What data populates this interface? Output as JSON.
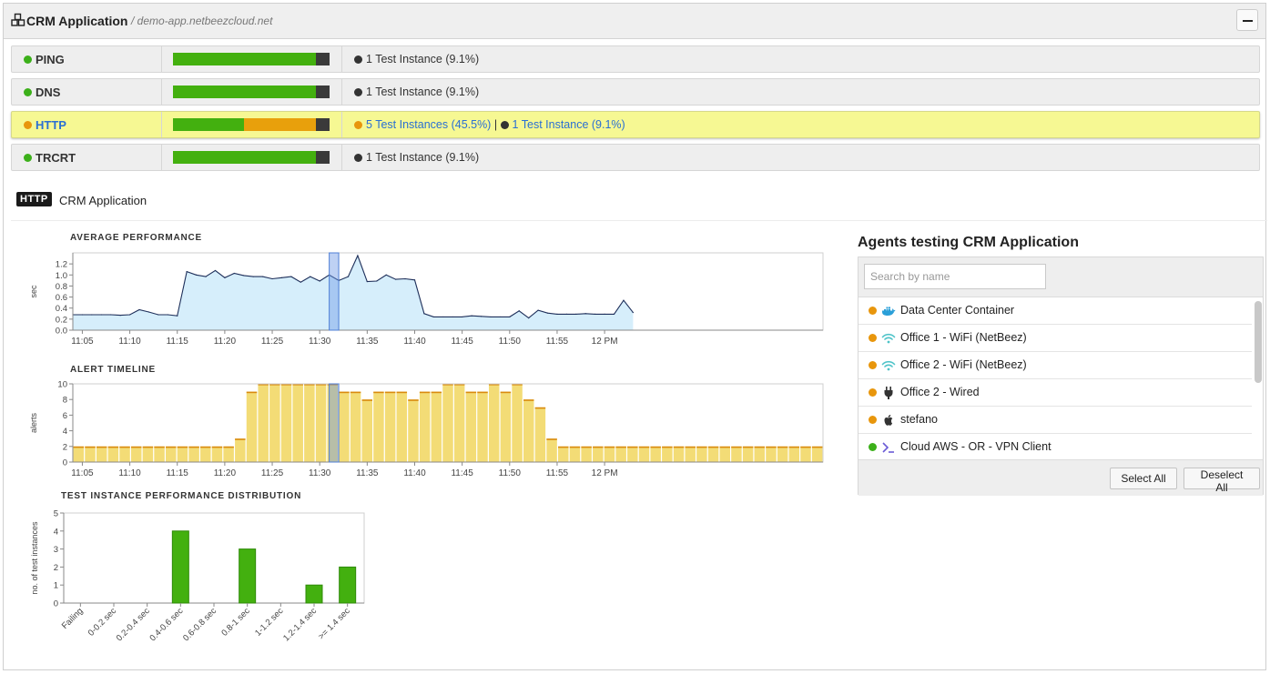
{
  "header": {
    "title": "CRM Application",
    "subtitle": "/ demo-app.netbeezcloud.net",
    "collapse_icon": "minus-icon"
  },
  "tests": [
    {
      "name": "PING",
      "status_color": "#3cb01a",
      "bar": [
        0.91,
        0,
        0.09
      ],
      "info": [
        {
          "color": "#333333",
          "text": "1 Test Instance (9.1%)",
          "link": false
        }
      ]
    },
    {
      "name": "DNS",
      "status_color": "#3cb01a",
      "bar": [
        0.91,
        0,
        0.09
      ],
      "info": [
        {
          "color": "#333333",
          "text": "1 Test Instance (9.1%)",
          "link": false
        }
      ]
    },
    {
      "name": "HTTP",
      "status_color": "#e8960c",
      "bar": [
        0.455,
        0.455,
        0.09
      ],
      "info": [
        {
          "color": "#e8960c",
          "text": "5 Test Instances (45.5%)",
          "link": true
        },
        {
          "color": "#333333",
          "text": "1 Test Instance (9.1%)",
          "link": true
        }
      ],
      "selected": true
    },
    {
      "name": "TRCRT",
      "status_color": "#3cb01a",
      "bar": [
        0.91,
        0,
        0.09
      ],
      "info": [
        {
          "color": "#333333",
          "text": "1 Test Instance (9.1%)",
          "link": false
        }
      ]
    }
  ],
  "colors": {
    "green": "#43b00f",
    "orange": "#e8a00c",
    "dark": "#3a3a3a",
    "area_fill": "#d6eefb",
    "line": "#1e2f5a",
    "alert_fill": "#f3dc76",
    "alert_top": "#d98a0f",
    "highlight": "#6f98e6"
  },
  "section": {
    "badge": "HTTP",
    "title": "CRM Application"
  },
  "chart_data": [
    {
      "type": "area",
      "title": "AVERAGE PERFORMANCE",
      "ylabel": "sec",
      "ylim": [
        0,
        1.4
      ],
      "yticks": [
        "0.0",
        "0.2",
        "0.4",
        "0.6",
        "0.8",
        "1.0",
        "1.2"
      ],
      "xlim": [
        "11:04",
        "12:23"
      ],
      "xticks": [
        "11:05",
        "11:10",
        "11:15",
        "11:20",
        "11:25",
        "11:30",
        "11:35",
        "11:40",
        "11:45",
        "11:50",
        "11:55",
        "12 PM"
      ],
      "highlight": [
        "11:31",
        "11:32"
      ],
      "x": [
        "11:04",
        "11:05",
        "11:06",
        "11:07",
        "11:08",
        "11:09",
        "11:10",
        "11:11",
        "11:12",
        "11:13",
        "11:14",
        "11:15",
        "11:16",
        "11:17",
        "11:18",
        "11:19",
        "11:20",
        "11:21",
        "11:22",
        "11:23",
        "11:24",
        "11:25",
        "11:26",
        "11:27",
        "11:28",
        "11:29",
        "11:30",
        "11:31",
        "11:32",
        "11:33",
        "11:34",
        "11:35",
        "11:36",
        "11:37",
        "11:38",
        "11:39",
        "11:40",
        "11:41",
        "11:42",
        "11:43",
        "11:44",
        "11:45",
        "11:46",
        "11:47",
        "11:48",
        "11:49",
        "11:50",
        "11:51",
        "11:52",
        "11:53",
        "11:54",
        "11:55",
        "11:56",
        "11:57",
        "11:58",
        "11:59",
        "12:00",
        "12:01",
        "12:02",
        "12:03"
      ],
      "values": [
        0.28,
        0.28,
        0.28,
        0.28,
        0.28,
        0.27,
        0.28,
        0.37,
        0.33,
        0.28,
        0.28,
        0.26,
        1.06,
        1.0,
        0.97,
        1.08,
        0.95,
        1.03,
        0.99,
        0.97,
        0.97,
        0.93,
        0.95,
        0.97,
        0.87,
        0.97,
        0.89,
        1.0,
        0.9,
        0.97,
        1.35,
        0.88,
        0.89,
        1.0,
        0.92,
        0.93,
        0.91,
        0.3,
        0.24,
        0.24,
        0.24,
        0.24,
        0.26,
        0.25,
        0.24,
        0.24,
        0.24,
        0.35,
        0.22,
        0.36,
        0.31,
        0.29,
        0.29,
        0.29,
        0.3,
        0.29,
        0.29,
        0.29,
        0.54,
        0.32
      ]
    },
    {
      "type": "bar",
      "title": "ALERT TIMELINE",
      "ylabel": "alerts",
      "ylim": [
        0,
        10
      ],
      "yticks": [
        "0",
        "2",
        "4",
        "6",
        "8",
        "10"
      ],
      "xlim": [
        "11:04",
        "12:23"
      ],
      "xticks": [
        "11:05",
        "11:10",
        "11:15",
        "11:20",
        "11:25",
        "11:30",
        "11:35",
        "11:40",
        "11:45",
        "11:50",
        "11:55",
        "12 PM"
      ],
      "highlight": [
        "11:31",
        "11:32"
      ],
      "values": [
        2,
        2,
        2,
        2,
        2,
        2,
        2,
        2,
        2,
        2,
        2,
        2,
        2,
        2,
        3,
        9,
        10,
        10,
        10,
        10,
        10,
        10,
        10,
        9,
        9,
        8,
        9,
        9,
        9,
        8,
        9,
        9,
        10,
        10,
        9,
        9,
        10,
        9,
        10,
        8,
        7,
        3,
        2,
        2,
        2,
        2,
        2,
        2,
        2,
        2,
        2,
        2,
        2,
        2,
        2,
        2,
        2,
        2,
        2,
        2,
        2,
        2,
        2,
        2,
        2
      ]
    },
    {
      "type": "bar",
      "title": "TEST INSTANCE PERFORMANCE DISTRIBUTION",
      "ylabel": "no. of test instances",
      "ylim": [
        0,
        5
      ],
      "yticks": [
        "0",
        "1",
        "2",
        "3",
        "4",
        "5"
      ],
      "categories": [
        "Failing",
        "0-0.2 sec",
        "0.2-0.4 sec",
        "0.4-0.6 sec",
        "0.6-0.8 sec",
        "0.8-1 sec",
        "1-1.2 sec",
        "1.2-1.4 sec",
        ">= 1.4 sec"
      ],
      "values": [
        0,
        0,
        0,
        4,
        0,
        3,
        0,
        1,
        2
      ]
    }
  ],
  "agents": {
    "title": "Agents testing CRM Application",
    "search_placeholder": "Search by name",
    "items": [
      {
        "name": "Data Center Container",
        "status_color": "#e8960c",
        "icon": "docker-icon"
      },
      {
        "name": "Office 1 - WiFi (NetBeez)",
        "status_color": "#e8960c",
        "icon": "wifi-icon"
      },
      {
        "name": "Office 2 - WiFi (NetBeez)",
        "status_color": "#e8960c",
        "icon": "wifi-icon"
      },
      {
        "name": "Office 2 - Wired",
        "status_color": "#e8960c",
        "icon": "plug-icon"
      },
      {
        "name": "stefano",
        "status_color": "#e8960c",
        "icon": "apple-icon"
      },
      {
        "name": "Cloud AWS - OR - VPN Client",
        "status_color": "#3cb01a",
        "icon": "terminal-icon"
      }
    ],
    "select_all": "Select All",
    "deselect_all": "Deselect All"
  }
}
